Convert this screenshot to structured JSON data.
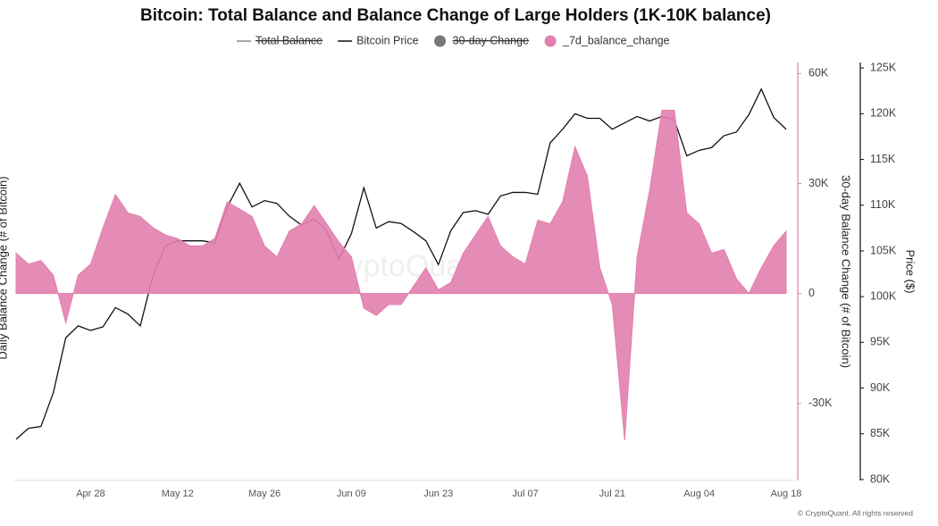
{
  "chart_data": {
    "type": "line",
    "title": "Bitcoin: Total Balance and Balance Change of Large Holders (1K-10K balance)",
    "watermark": "CryptoQuant",
    "footer": "© CryptoQuant. All rights reserved",
    "y_label": "Daily Balance Change (# of Bitcoin)",
    "y_label_right": "30-day Balance Change (# of Bitcoin)",
    "y2_label": "Price ($)",
    "hidden_series": [
      {
        "name": "Total Balance",
        "marker": "line",
        "color": "#888888"
      },
      {
        "name": "30-day Change",
        "marker": "circle",
        "color": "#777777"
      }
    ],
    "categories": [
      null,
      null,
      null,
      null,
      null,
      null,
      "Apr 28",
      null,
      null,
      null,
      null,
      null,
      null,
      "May 12",
      null,
      null,
      null,
      null,
      null,
      null,
      "May 26",
      null,
      null,
      null,
      null,
      null,
      null,
      "Jun 09",
      null,
      null,
      null,
      null,
      null,
      null,
      "Jun 23",
      null,
      null,
      null,
      null,
      null,
      null,
      "Jul 07",
      null,
      null,
      null,
      null,
      null,
      null,
      "Jul 21",
      null,
      null,
      null,
      null,
      null,
      null,
      "Aug 04",
      null,
      null,
      null,
      null,
      null,
      null,
      "Aug 18"
    ],
    "series": [
      {
        "name": "Bitcoin Price",
        "type": "line",
        "axis": "y2",
        "color": "#111111",
        "marker": "line",
        "values": [
          84400,
          85600,
          85800,
          89500,
          95500,
          96800,
          96300,
          96700,
          98800,
          98100,
          96800,
          102200,
          105500,
          106100,
          106100,
          106100,
          105900,
          109800,
          112400,
          109800,
          110500,
          110200,
          108800,
          107800,
          108500,
          107200,
          104100,
          106900,
          111900,
          107500,
          108200,
          108000,
          107100,
          106100,
          103500,
          107200,
          109200,
          109400,
          109000,
          111000,
          111400,
          111400,
          111200,
          116800,
          118300,
          120000,
          119500,
          119500,
          118300,
          119000,
          119700,
          119200,
          119700,
          119300,
          115400,
          116000,
          116300,
          117600,
          118000,
          119900,
          122700,
          119600,
          118300
        ]
      },
      {
        "name": "_7d_balance_change",
        "type": "area",
        "axis": "y",
        "color": "#e27fae",
        "marker": "circle",
        "values": [
          11000,
          8000,
          9000,
          5000,
          -8000,
          5000,
          8000,
          18000,
          27000,
          22000,
          21000,
          18000,
          16000,
          15000,
          13000,
          13000,
          15000,
          25000,
          23000,
          21000,
          13000,
          10000,
          17000,
          19000,
          24000,
          19000,
          14000,
          10000,
          -4000,
          -6000,
          -3000,
          -3000,
          2000,
          7000,
          1000,
          3000,
          11000,
          16000,
          21000,
          13000,
          10000,
          8000,
          20000,
          19000,
          25000,
          40000,
          32000,
          7000,
          -3000,
          -40000,
          10000,
          28000,
          50000,
          50000,
          22000,
          19000,
          11000,
          12000,
          4000,
          0,
          7000,
          13000,
          17000
        ]
      }
    ],
    "ylim": [
      -51000,
      63000
    ],
    "yticks": [
      {
        "value": -30000,
        "label": "-30K"
      },
      0,
      {
        "value": 30000,
        "label": "30K"
      },
      {
        "value": 60000,
        "label": "60K"
      }
    ],
    "y2lim": [
      79900,
      125600
    ],
    "y2ticks": [
      {
        "value": 80000,
        "label": "80K"
      },
      {
        "value": 85000,
        "label": "85K"
      },
      {
        "value": 90000,
        "label": "90K"
      },
      {
        "value": 95000,
        "label": "95K"
      },
      {
        "value": 100000,
        "label": "100K"
      },
      {
        "value": 105000,
        "label": "105K"
      },
      {
        "value": 110000,
        "label": "110K"
      },
      {
        "value": 115000,
        "label": "115K"
      },
      {
        "value": 120000,
        "label": "120K"
      },
      {
        "value": 125000,
        "label": "125K"
      }
    ],
    "y_axis_color": "#e27fae",
    "y2_axis_color": "#111111",
    "grid": false
  }
}
